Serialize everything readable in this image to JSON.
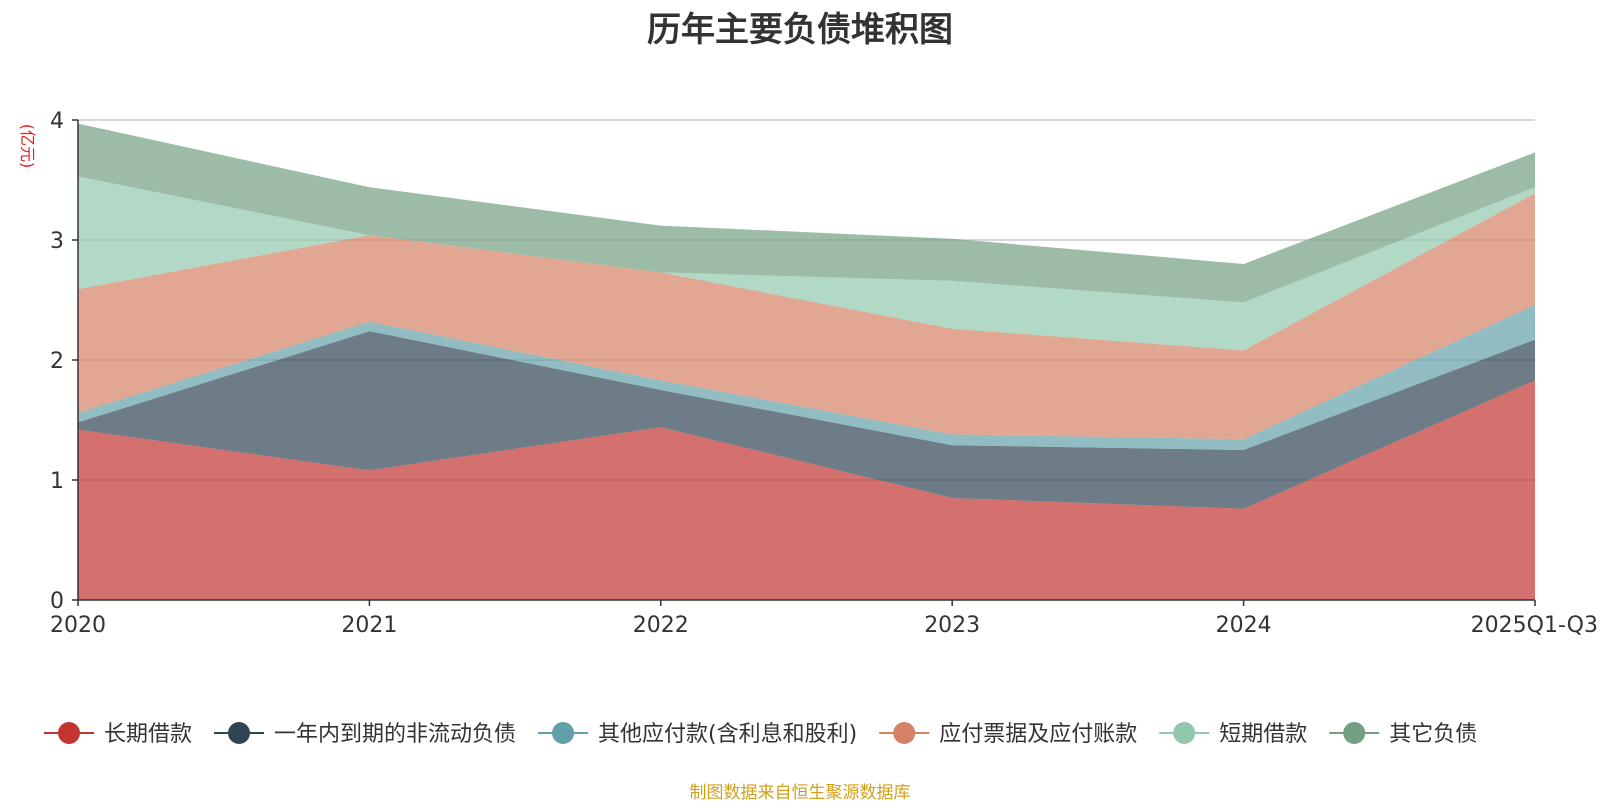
{
  "chart_data": {
    "type": "area",
    "stacked": true,
    "title": "历年主要负债堆积图",
    "ylabel": "(亿元)",
    "xlabel": "",
    "ylim": [
      0,
      4
    ],
    "yticks": [
      0,
      1,
      2,
      3,
      4
    ],
    "grid": true,
    "legend_position": "bottom",
    "categories": [
      "2020",
      "2021",
      "2022",
      "2023",
      "2024",
      "2025Q1-Q3"
    ],
    "series": [
      {
        "name": "长期借款",
        "color": "#c23531",
        "values": [
          1.42,
          1.08,
          1.44,
          0.85,
          0.76,
          1.83
        ]
      },
      {
        "name": "一年内到期的非流动负债",
        "color": "#2f4554",
        "values": [
          0.06,
          1.16,
          0.31,
          0.44,
          0.49,
          0.34
        ]
      },
      {
        "name": "其他应付款(含利息和股利)",
        "color": "#61a0a8",
        "values": [
          0.08,
          0.08,
          0.08,
          0.09,
          0.09,
          0.29
        ]
      },
      {
        "name": "应付票据及应付账款",
        "color": "#d48265",
        "values": [
          1.03,
          0.72,
          0.9,
          0.88,
          0.74,
          0.93
        ]
      },
      {
        "name": "短期借款",
        "color": "#91c7ae",
        "values": [
          0.94,
          0.0,
          0.0,
          0.4,
          0.4,
          0.05
        ]
      },
      {
        "name": "其它负债",
        "color": "#749f83",
        "values": [
          0.44,
          0.4,
          0.39,
          0.35,
          0.32,
          0.29
        ]
      }
    ]
  },
  "footer": {
    "source": "制图数据来自恒生聚源数据库"
  }
}
